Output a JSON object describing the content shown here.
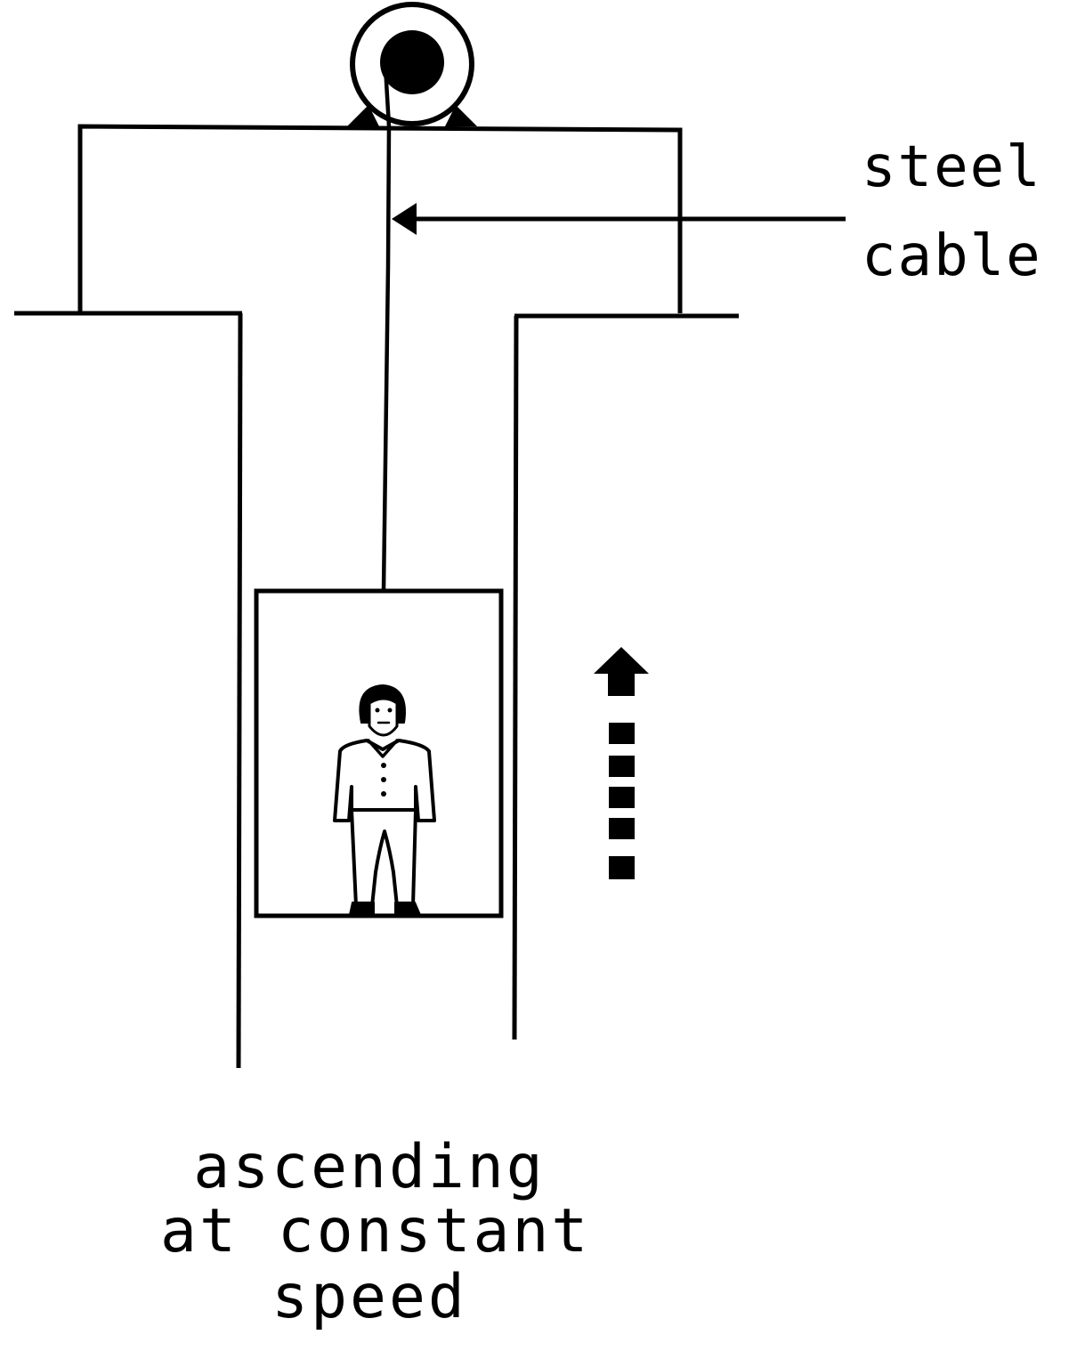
{
  "labels": {
    "cable_line1": "steel",
    "cable_line2": "cable"
  },
  "caption": {
    "line1": "ascending",
    "line2": "at constant",
    "line3": "speed"
  },
  "colors": {
    "ink": "#000000",
    "background": "#ffffff"
  }
}
